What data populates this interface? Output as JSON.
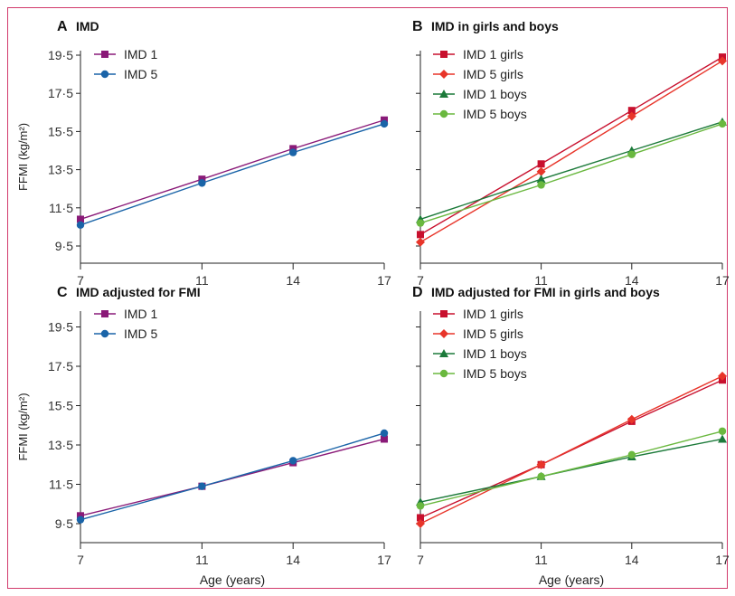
{
  "figure": {
    "shared_ylabel": "FFMI (kg/m²)",
    "shared_xlabel": "Age (years)",
    "x_ticks": [
      "7",
      "11",
      "14",
      "17"
    ],
    "y_ticks": [
      "9·5",
      "11·5",
      "13·5",
      "15·5",
      "17·5",
      "19·5"
    ]
  },
  "chart_data": [
    {
      "type": "line",
      "panel_letter": "A",
      "title": "IMD",
      "xlabel": "",
      "ylabel": "FFMI (kg/m²)",
      "x": [
        7,
        11,
        14,
        17
      ],
      "xlim": [
        7,
        17
      ],
      "ylim": [
        8.5,
        20
      ],
      "yticks": [
        9.5,
        11.5,
        13.5,
        15.5,
        17.5,
        19.5
      ],
      "legend": "top-left",
      "series": [
        {
          "name": "IMD 1",
          "color": "#8a1a78",
          "marker": "square",
          "values": [
            10.9,
            13.0,
            14.6,
            16.1
          ]
        },
        {
          "name": "IMD 5",
          "color": "#1a64a8",
          "marker": "circle",
          "values": [
            10.6,
            12.8,
            14.4,
            15.9
          ]
        }
      ]
    },
    {
      "type": "line",
      "panel_letter": "B",
      "title": "IMD in girls and boys",
      "xlabel": "",
      "ylabel": "",
      "x": [
        7,
        11,
        14,
        17
      ],
      "xlim": [
        7,
        17
      ],
      "ylim": [
        8.5,
        20
      ],
      "yticks": [
        9.5,
        11.5,
        13.5,
        15.5,
        17.5,
        19.5
      ],
      "legend": "top-left",
      "series": [
        {
          "name": "IMD 1 girls",
          "color": "#c8102e",
          "marker": "square",
          "values": [
            10.1,
            13.8,
            16.6,
            19.4
          ]
        },
        {
          "name": "IMD 5 girls",
          "color": "#e8352a",
          "marker": "diamond",
          "values": [
            9.7,
            13.4,
            16.3,
            19.2
          ]
        },
        {
          "name": "IMD 1 boys",
          "color": "#1c7a3a",
          "marker": "triangle",
          "values": [
            10.9,
            13.0,
            14.5,
            16.0
          ]
        },
        {
          "name": "IMD 5 boys",
          "color": "#6ab83f",
          "marker": "circle",
          "values": [
            10.7,
            12.7,
            14.3,
            15.9
          ]
        }
      ]
    },
    {
      "type": "line",
      "panel_letter": "C",
      "title": "IMD adjusted for FMI",
      "xlabel": "Age (years)",
      "ylabel": "FFMI (kg/m²)",
      "x": [
        7,
        11,
        14,
        17
      ],
      "xlim": [
        7,
        17
      ],
      "ylim": [
        8.5,
        20
      ],
      "yticks": [
        9.5,
        11.5,
        13.5,
        15.5,
        17.5,
        19.5
      ],
      "legend": "top-left",
      "series": [
        {
          "name": "IMD 1",
          "color": "#8a1a78",
          "marker": "square",
          "values": [
            9.9,
            11.4,
            12.6,
            13.8
          ]
        },
        {
          "name": "IMD 5",
          "color": "#1a64a8",
          "marker": "circle",
          "values": [
            9.7,
            11.4,
            12.7,
            14.1
          ]
        }
      ]
    },
    {
      "type": "line",
      "panel_letter": "D",
      "title": "IMD adjusted for FMI in girls and boys",
      "xlabel": "Age (years)",
      "ylabel": "",
      "x": [
        7,
        11,
        14,
        17
      ],
      "xlim": [
        7,
        17
      ],
      "ylim": [
        8.5,
        20
      ],
      "yticks": [
        9.5,
        11.5,
        13.5,
        15.5,
        17.5,
        19.5
      ],
      "legend": "top-left",
      "series": [
        {
          "name": "IMD 1 girls",
          "color": "#c8102e",
          "marker": "square",
          "values": [
            9.8,
            12.5,
            14.7,
            16.8
          ]
        },
        {
          "name": "IMD 5 girls",
          "color": "#e8352a",
          "marker": "diamond",
          "values": [
            9.5,
            12.5,
            14.8,
            17.0
          ]
        },
        {
          "name": "IMD 1 boys",
          "color": "#1c7a3a",
          "marker": "triangle",
          "values": [
            10.6,
            11.9,
            12.9,
            13.8
          ]
        },
        {
          "name": "IMD 5 boys",
          "color": "#6ab83f",
          "marker": "circle",
          "values": [
            10.4,
            11.9,
            13.0,
            14.2
          ]
        }
      ]
    }
  ]
}
